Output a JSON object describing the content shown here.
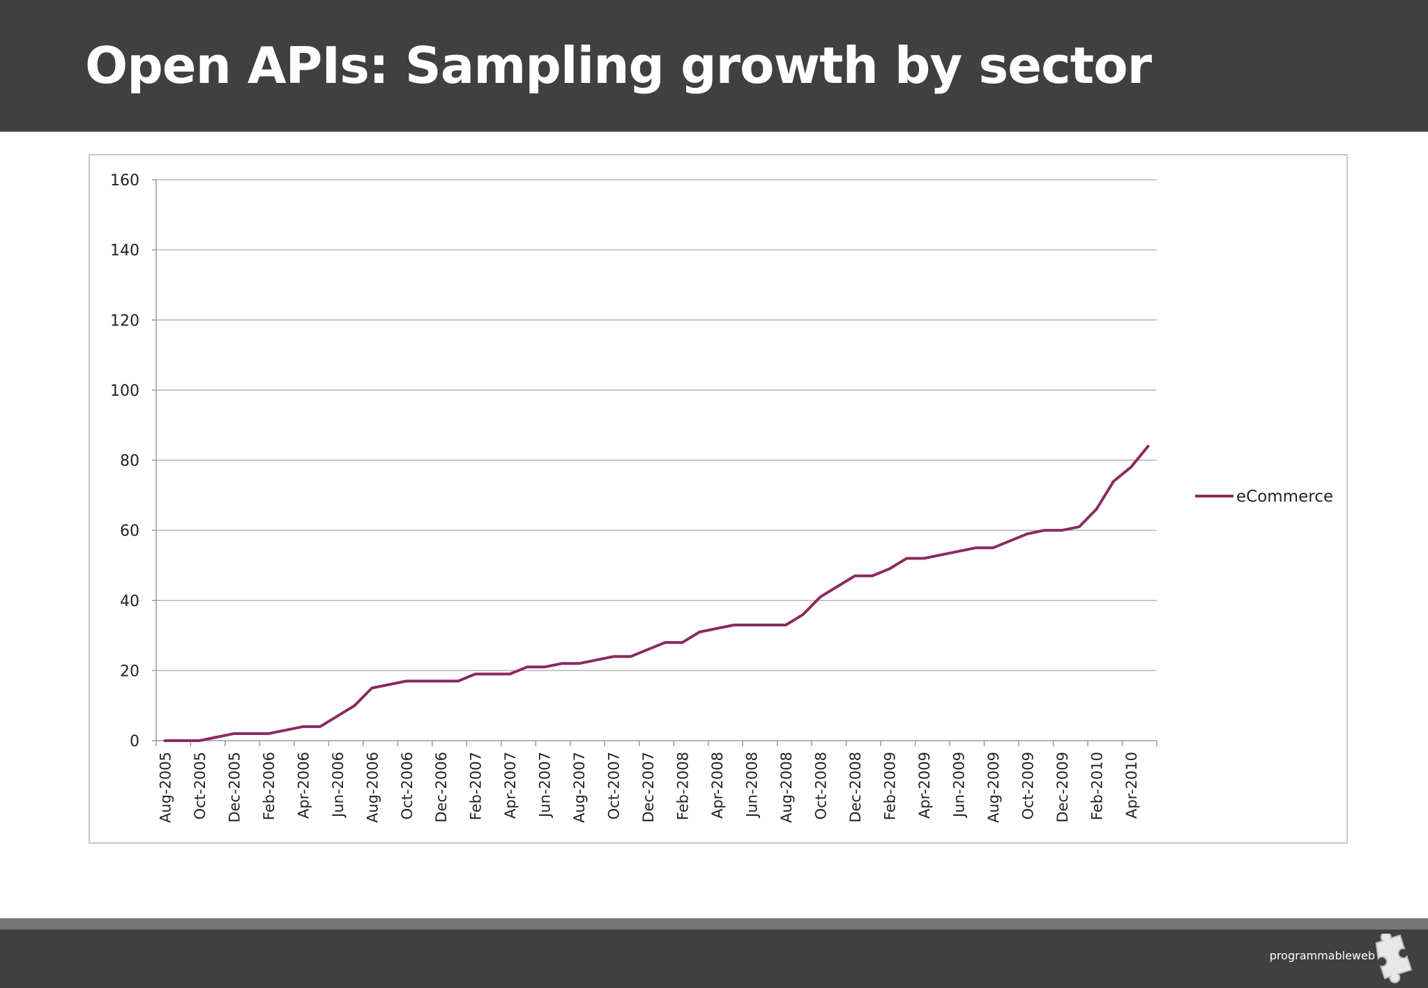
{
  "slide": {
    "title": "Open APIs: Sampling growth by sector"
  },
  "logo": {
    "text": "programmableweb"
  },
  "chart_data": {
    "type": "line",
    "title": "",
    "xlabel": "",
    "ylabel": "",
    "ylim": [
      0,
      160
    ],
    "yticks": [
      0,
      20,
      40,
      60,
      80,
      100,
      120,
      140,
      160
    ],
    "grid": true,
    "legend_position": "right",
    "x": [
      "Aug-2005",
      "Sep-2005",
      "Oct-2005",
      "Nov-2005",
      "Dec-2005",
      "Jan-2006",
      "Feb-2006",
      "Mar-2006",
      "Apr-2006",
      "May-2006",
      "Jun-2006",
      "Jul-2006",
      "Aug-2006",
      "Sep-2006",
      "Oct-2006",
      "Nov-2006",
      "Dec-2006",
      "Jan-2007",
      "Feb-2007",
      "Mar-2007",
      "Apr-2007",
      "May-2007",
      "Jun-2007",
      "Jul-2007",
      "Aug-2007",
      "Sep-2007",
      "Oct-2007",
      "Nov-2007",
      "Dec-2007",
      "Jan-2008",
      "Feb-2008",
      "Mar-2008",
      "Apr-2008",
      "May-2008",
      "Jun-2008",
      "Jul-2008",
      "Aug-2008",
      "Sep-2008",
      "Oct-2008",
      "Nov-2008",
      "Dec-2008",
      "Jan-2009",
      "Feb-2009",
      "Mar-2009",
      "Apr-2009",
      "May-2009",
      "Jun-2009",
      "Jul-2009",
      "Aug-2009",
      "Sep-2009",
      "Oct-2009",
      "Nov-2009",
      "Dec-2009",
      "Jan-2010",
      "Feb-2010",
      "Mar-2010",
      "Apr-2010",
      "May-2010"
    ],
    "x_tick_labels": [
      "Aug-2005",
      "Oct-2005",
      "Dec-2005",
      "Feb-2006",
      "Apr-2006",
      "Jun-2006",
      "Aug-2006",
      "Oct-2006",
      "Dec-2006",
      "Feb-2007",
      "Apr-2007",
      "Jun-2007",
      "Aug-2007",
      "Oct-2007",
      "Dec-2007",
      "Feb-2008",
      "Apr-2008",
      "Jun-2008",
      "Aug-2008",
      "Oct-2008",
      "Dec-2008",
      "Feb-2009",
      "Apr-2009",
      "Jun-2009",
      "Aug-2009",
      "Oct-2009",
      "Dec-2009",
      "Feb-2010",
      "Apr-2010"
    ],
    "series": [
      {
        "name": "eCommerce",
        "color": "#8b2a5e",
        "values": [
          0,
          0,
          0,
          1,
          2,
          2,
          2,
          3,
          4,
          4,
          7,
          10,
          15,
          16,
          17,
          17,
          17,
          17,
          19,
          19,
          19,
          21,
          21,
          22,
          22,
          23,
          24,
          24,
          26,
          28,
          28,
          31,
          32,
          33,
          33,
          33,
          33,
          36,
          41,
          44,
          47,
          47,
          49,
          52,
          52,
          53,
          54,
          55,
          55,
          57,
          59,
          60,
          60,
          61,
          66,
          74,
          78,
          84
        ]
      }
    ]
  }
}
